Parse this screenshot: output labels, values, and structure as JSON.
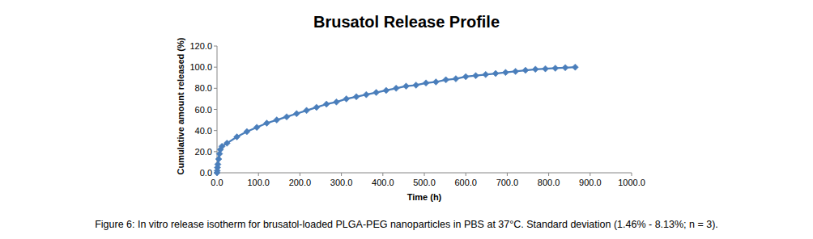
{
  "chart_data": {
    "type": "line",
    "title": "Brusatol Release Profile",
    "x_label": "Time (h)",
    "y_label": "Cumulative amount released (%)",
    "caption": "Figure 6: In vitro release isotherm for brusatol-loaded PLGA-PEG nanoparticles in PBS at 37°C.  Standard deviation (1.46% - 8.13%; n = 3).",
    "x": [
      0,
      0.5,
      1,
      2,
      4,
      6,
      8,
      12,
      24,
      48,
      72,
      96,
      120,
      144,
      168,
      192,
      216,
      240,
      264,
      288,
      312,
      336,
      360,
      384,
      408,
      432,
      456,
      480,
      504,
      528,
      552,
      576,
      600,
      624,
      648,
      672,
      696,
      720,
      744,
      768,
      792,
      816,
      840,
      864
    ],
    "series": [
      {
        "name": "Brusatol",
        "color": "#4a7ebb",
        "marker": "diamond",
        "values": [
          0,
          2,
          5,
          8,
          13,
          18,
          22,
          25,
          28,
          34,
          39,
          43,
          47,
          50,
          53,
          56,
          59,
          62,
          65,
          67,
          70,
          72,
          74,
          76,
          78,
          80,
          82,
          83,
          85,
          86,
          88,
          89,
          91,
          92,
          93,
          94,
          95,
          96,
          97,
          98,
          98.5,
          99,
          99.5,
          100
        ]
      }
    ],
    "xlim": [
      0,
      1000
    ],
    "xticks": [
      {
        "value": 0,
        "label": "0.0"
      },
      {
        "value": 100,
        "label": "100.0"
      },
      {
        "value": 200,
        "label": "200.0"
      },
      {
        "value": 300,
        "label": "300.0"
      },
      {
        "value": 400,
        "label": "400.0"
      },
      {
        "value": 500,
        "label": "500.0"
      },
      {
        "value": 600,
        "label": "600.0"
      },
      {
        "value": 700,
        "label": "700.0"
      },
      {
        "value": 800,
        "label": "800.0"
      },
      {
        "value": 900,
        "label": "900.0"
      },
      {
        "value": 1000,
        "label": "1000.0"
      }
    ],
    "ylim": [
      0,
      120
    ],
    "yticks": [
      {
        "value": 0,
        "label": "0.0"
      },
      {
        "value": 20,
        "label": "20.0"
      },
      {
        "value": 40,
        "label": "40.0"
      },
      {
        "value": 60,
        "label": "60.0"
      },
      {
        "value": 80,
        "label": "80.0"
      },
      {
        "value": 100,
        "label": "100.0"
      },
      {
        "value": 120,
        "label": "120.0"
      }
    ],
    "grid": false
  }
}
